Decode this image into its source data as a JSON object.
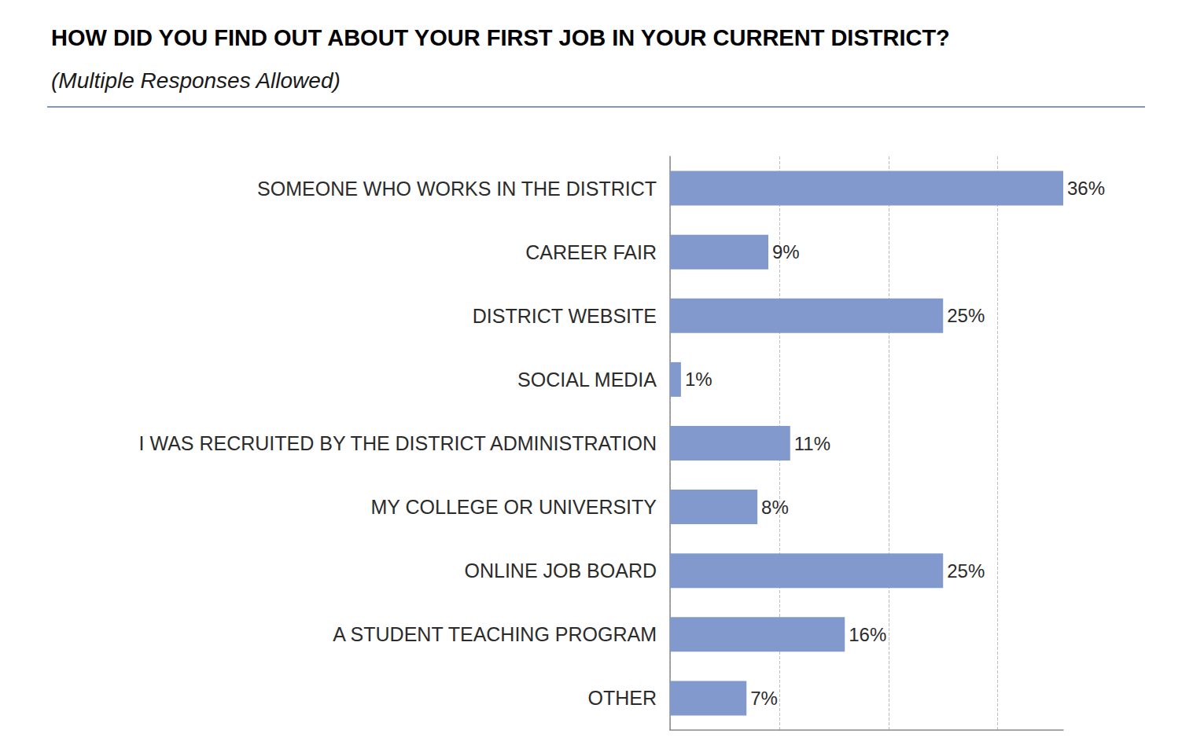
{
  "chart_data": {
    "type": "bar",
    "title": "HOW DID YOU FIND OUT ABOUT YOUR FIRST JOB IN YOUR CURRENT DISTRICT?",
    "subtitle": "(Multiple Responses Allowed)",
    "orientation": "horizontal",
    "categories": [
      "SOMEONE WHO WORKS IN THE DISTRICT",
      "CAREER FAIR",
      "DISTRICT WEBSITE",
      "SOCIAL MEDIA",
      "I WAS RECRUITED BY THE DISTRICT ADMINISTRATION",
      "MY COLLEGE OR UNIVERSITY",
      "ONLINE JOB BOARD",
      "A STUDENT TEACHING PROGRAM",
      "OTHER"
    ],
    "values": [
      36,
      9,
      25,
      1,
      11,
      8,
      25,
      16,
      7
    ],
    "value_labels": [
      "36%",
      "9%",
      "25%",
      "1%",
      "11%",
      "8%",
      "25%",
      "16%",
      "7%"
    ],
    "color": "#8199cd",
    "xlim": [
      0,
      36
    ],
    "xticks": [
      0,
      10,
      20,
      30
    ],
    "grid": true,
    "data_labels": true,
    "tick_labels": "y"
  }
}
